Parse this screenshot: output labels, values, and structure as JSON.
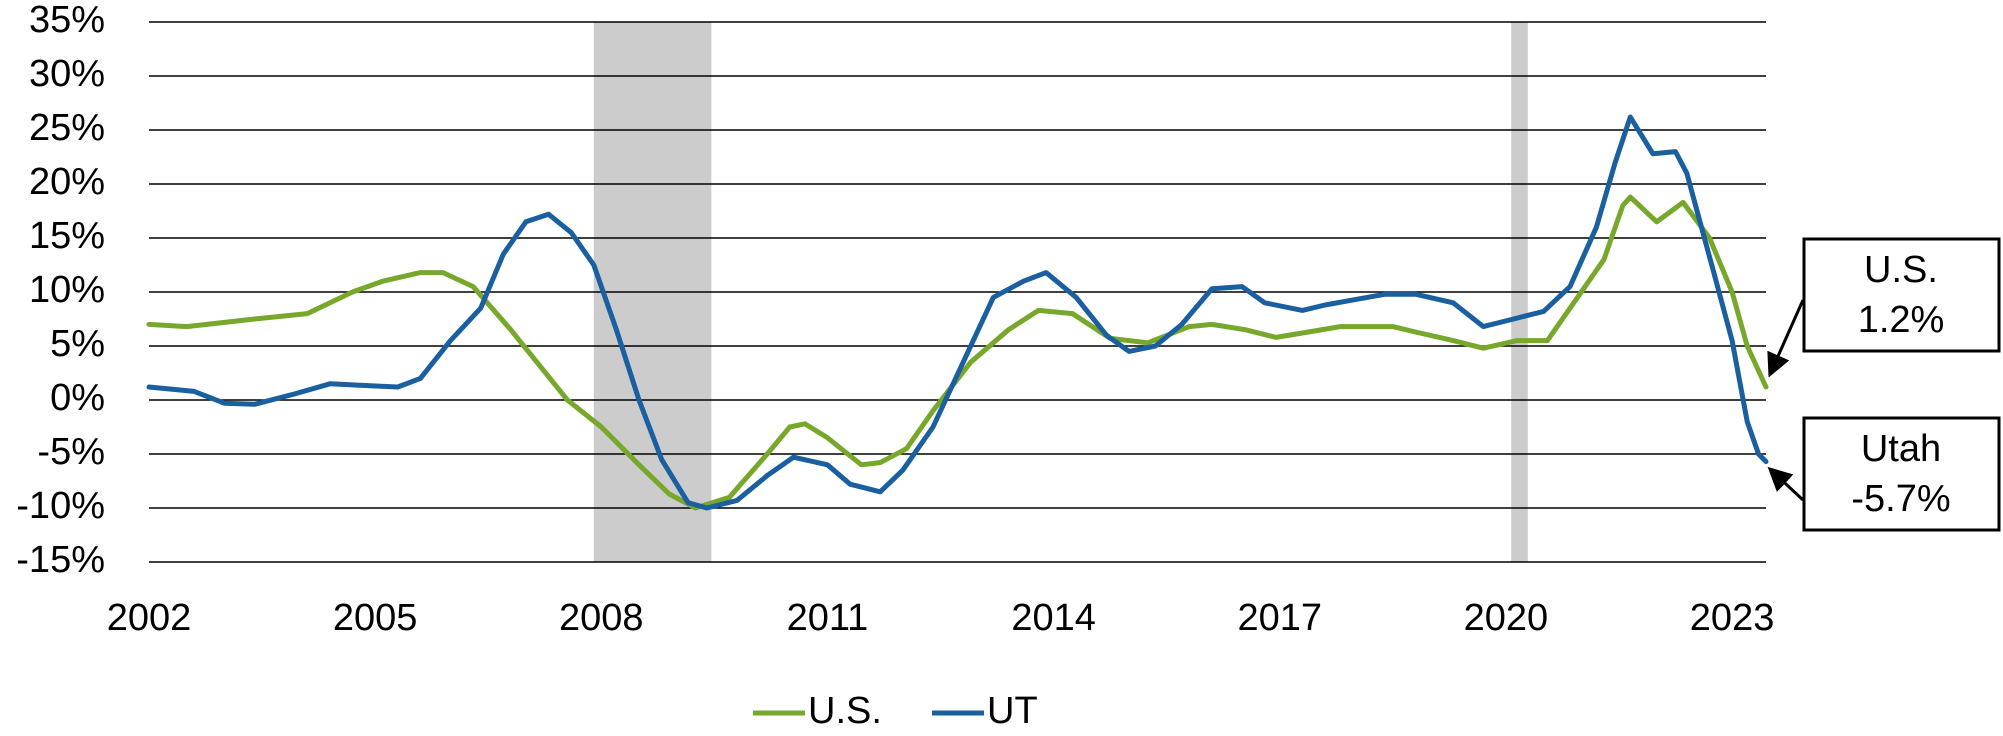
{
  "chart_data": {
    "type": "line",
    "xlim": [
      2002,
      2023.45
    ],
    "xticks": [
      2002,
      2005,
      2008,
      2011,
      2014,
      2017,
      2020,
      2023
    ],
    "ylim": [
      -15,
      35
    ],
    "yticks": [
      {
        "value": -15,
        "label": "-15%"
      },
      {
        "value": -10,
        "label": "-10%"
      },
      {
        "value": -5,
        "label": "-5%"
      },
      {
        "value": 0,
        "label": "0%"
      },
      {
        "value": 5,
        "label": "5%"
      },
      {
        "value": 10,
        "label": "10%"
      },
      {
        "value": 15,
        "label": "15%"
      },
      {
        "value": 20,
        "label": "20%"
      },
      {
        "value": 25,
        "label": "25%"
      },
      {
        "value": 30,
        "label": "30%"
      },
      {
        "value": 35,
        "label": "35%"
      }
    ],
    "grid": true,
    "shaded_ranges": [
      [
        2007.9,
        2009.46
      ],
      [
        2020.07,
        2020.29
      ]
    ],
    "shade_color": "#cccccc",
    "series": [
      {
        "name": "U.S.",
        "color": "#77a82b",
        "x": [
          2002,
          2002.5,
          2003.4,
          2004.1,
          2004.7,
          2005.1,
          2005.6,
          2005.9,
          2006.3,
          2006.8,
          2007.55,
          2008.0,
          2008.5,
          2008.9,
          2009.25,
          2009.7,
          2010.2,
          2010.5,
          2010.7,
          2011.0,
          2011.45,
          2011.7,
          2012.05,
          2012.4,
          2012.9,
          2013.4,
          2013.8,
          2014.25,
          2014.75,
          2015.25,
          2015.8,
          2016.1,
          2016.55,
          2016.95,
          2017.3,
          2017.8,
          2018.5,
          2018.8,
          2019.3,
          2019.7,
          2020.15,
          2020.55,
          2020.95,
          2021.3,
          2021.55,
          2021.65,
          2022.0,
          2022.35,
          2022.7,
          2023.0,
          2023.2,
          2023.45
        ],
        "values": [
          7.0,
          6.8,
          7.5,
          8.0,
          10.0,
          11.0,
          11.8,
          11.8,
          10.5,
          6.5,
          0,
          -2.5,
          -6,
          -8.7,
          -10,
          -9,
          -5,
          -2.5,
          -2.2,
          -3.5,
          -6,
          -5.8,
          -4.5,
          -1,
          3.5,
          6.5,
          8.3,
          8.0,
          5.7,
          5.3,
          6.8,
          7.0,
          6.5,
          5.8,
          6.2,
          6.8,
          6.8,
          6.3,
          5.5,
          4.8,
          5.5,
          5.5,
          9.5,
          13.0,
          18.0,
          18.8,
          16.5,
          18.3,
          15.0,
          10.0,
          5.0,
          1.2
        ]
      },
      {
        "name": "UT",
        "color": "#1a5fa0",
        "x": [
          2002,
          2002.6,
          2003.0,
          2003.4,
          2003.9,
          2004.4,
          2005.0,
          2005.3,
          2005.6,
          2006.0,
          2006.4,
          2006.7,
          2007.0,
          2007.3,
          2007.6,
          2007.9,
          2008.2,
          2008.5,
          2008.8,
          2009.15,
          2009.4,
          2009.8,
          2010.2,
          2010.55,
          2011.0,
          2011.3,
          2011.7,
          2012.0,
          2012.4,
          2012.8,
          2013.2,
          2013.6,
          2013.9,
          2014.3,
          2014.7,
          2015.0,
          2015.35,
          2015.7,
          2016.1,
          2016.5,
          2016.8,
          2017.3,
          2017.6,
          2018.0,
          2018.4,
          2018.8,
          2019.3,
          2019.7,
          2020.1,
          2020.5,
          2020.85,
          2021.2,
          2021.45,
          2021.65,
          2021.95,
          2022.25,
          2022.4,
          2022.75,
          2023.0,
          2023.2,
          2023.35,
          2023.45
        ],
        "values": [
          1.2,
          0.8,
          -0.3,
          -0.4,
          0.5,
          1.5,
          1.3,
          1.2,
          2.0,
          5.5,
          8.5,
          13.5,
          16.5,
          17.2,
          15.5,
          12.5,
          6.5,
          0,
          -5.5,
          -9.5,
          -10,
          -9.3,
          -7,
          -5.3,
          -6,
          -7.8,
          -8.5,
          -6.5,
          -2.5,
          3.5,
          9.5,
          11.0,
          11.8,
          9.5,
          6.0,
          4.5,
          5.0,
          7.0,
          10.3,
          10.5,
          9.0,
          8.3,
          8.8,
          9.3,
          9.8,
          9.8,
          9.0,
          6.8,
          7.5,
          8.2,
          10.5,
          16,
          22,
          26.2,
          22.8,
          23.0,
          21,
          12,
          5.5,
          -2,
          -5,
          -5.7
        ]
      }
    ],
    "annotations": [
      {
        "lines": [
          "U.S.",
          "1.2%"
        ]
      },
      {
        "lines": [
          "Utah",
          "-5.7%"
        ]
      }
    ]
  }
}
